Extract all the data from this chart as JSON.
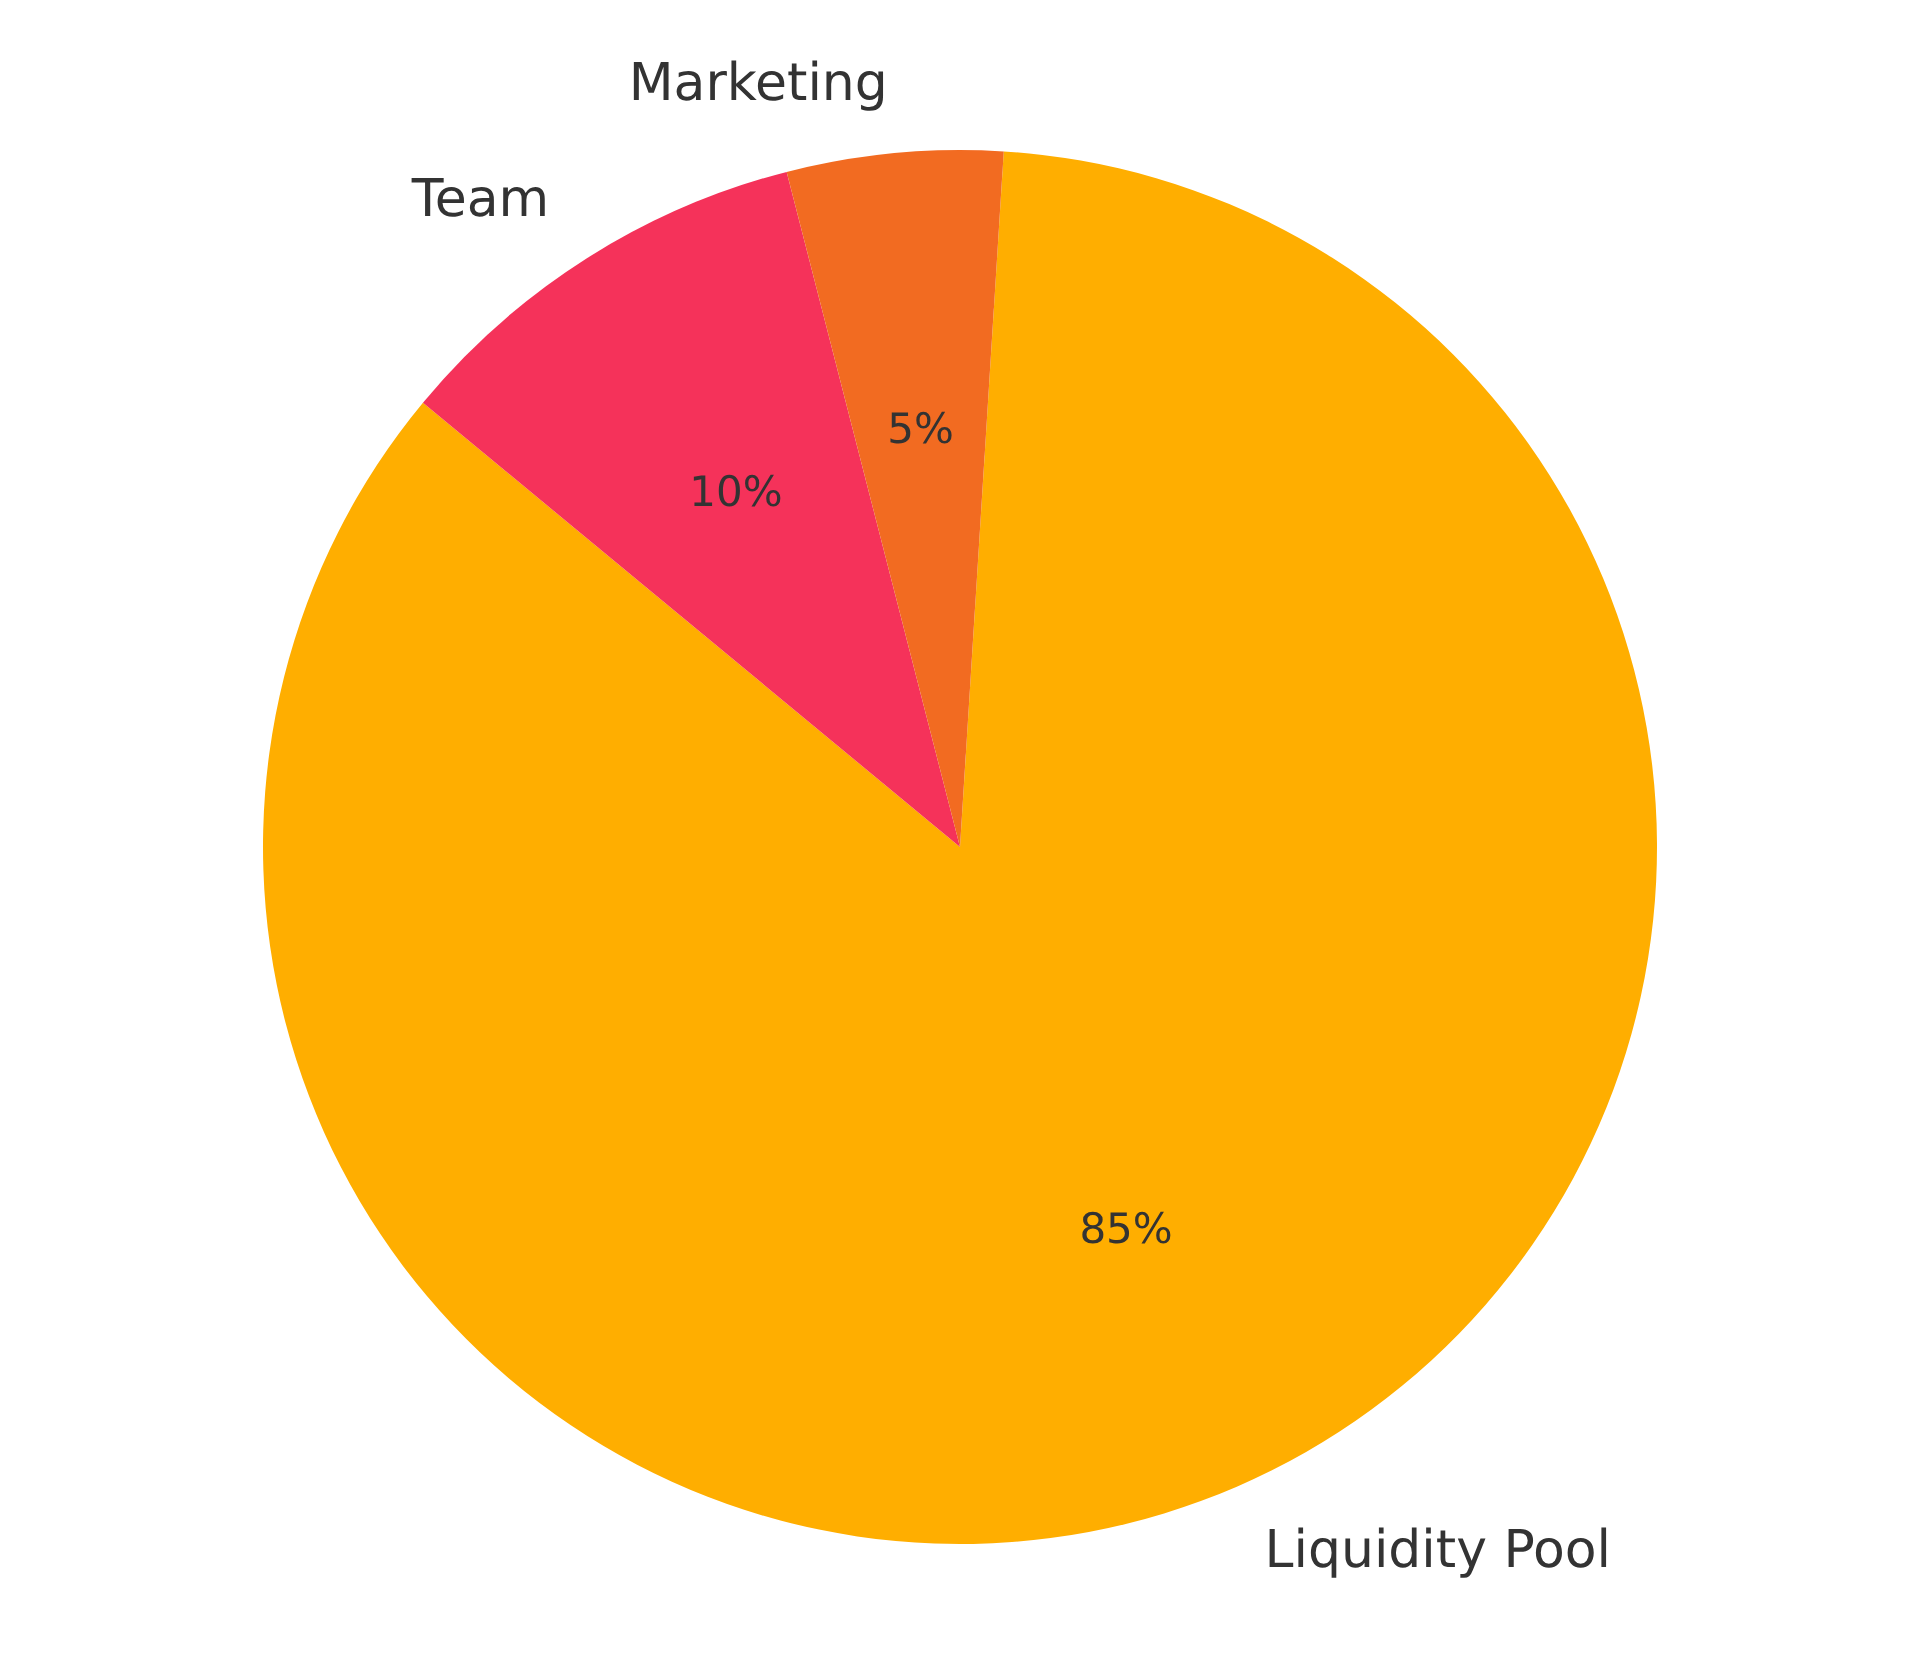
{
  "chart_data": {
    "type": "pie",
    "categories": [
      "Liquidity Pool",
      "Team",
      "Marketing"
    ],
    "values": [
      85,
      10,
      5
    ],
    "colors": [
      "#ffae00",
      "#f5325a",
      "#f26b21"
    ],
    "value_labels": [
      "85%",
      "10%",
      "5%"
    ]
  }
}
